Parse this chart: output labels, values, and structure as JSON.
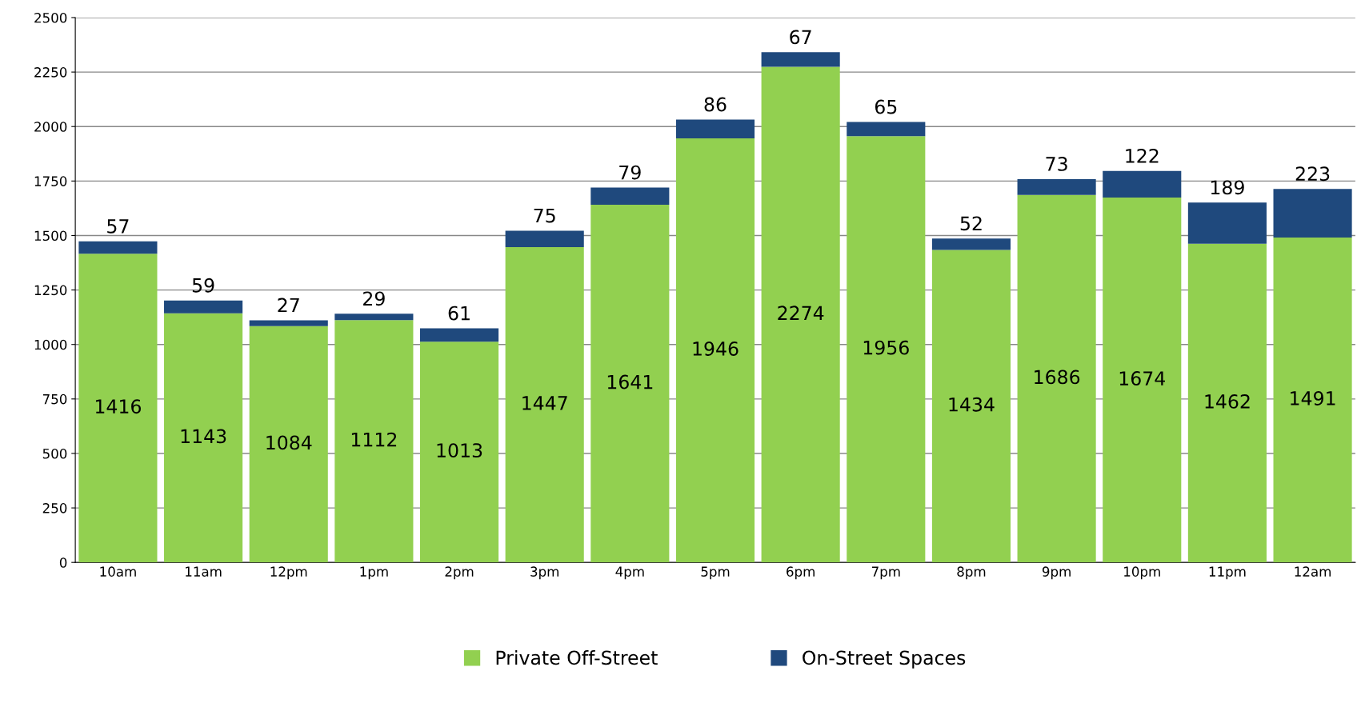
{
  "chart_data": {
    "type": "bar",
    "stacked": true,
    "data_labels": true,
    "grid": "y",
    "legend": "bottom",
    "categories": [
      "10am",
      "11am",
      "12pm",
      "1pm",
      "2pm",
      "3pm",
      "4pm",
      "5pm",
      "6pm",
      "7pm",
      "8pm",
      "9pm",
      "10pm",
      "11pm",
      "12am"
    ],
    "series": [
      {
        "name": "Private Off-Street",
        "color": "#92d050",
        "values": [
          1416,
          1143,
          1084,
          1112,
          1013,
          1447,
          1641,
          1946,
          2274,
          1956,
          1434,
          1686,
          1674,
          1462,
          1491
        ]
      },
      {
        "name": "On-Street Spaces",
        "color": "#1f497d",
        "values": [
          57,
          59,
          27,
          29,
          61,
          75,
          79,
          86,
          67,
          65,
          52,
          73,
          122,
          189,
          223
        ]
      }
    ],
    "ylim": [
      0,
      2500
    ],
    "yticks": [
      0,
      250,
      500,
      750,
      1000,
      1250,
      1500,
      1750,
      2000,
      2250,
      2500
    ]
  }
}
